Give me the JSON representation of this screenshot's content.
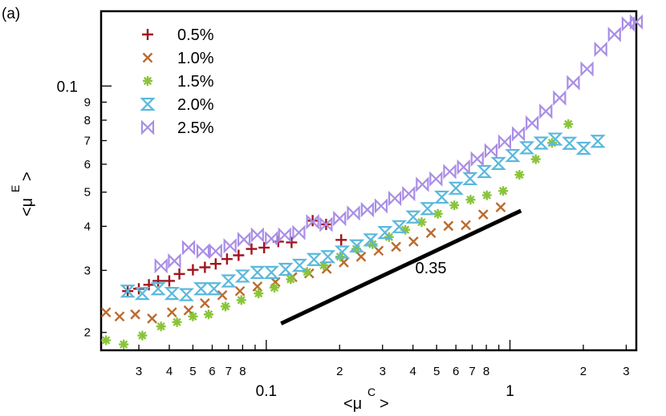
{
  "panel_label": "(a)",
  "chart_data": {
    "type": "scatter",
    "xscale": "log",
    "yscale": "log",
    "xlim": [
      0.021,
      3.3
    ],
    "ylim": [
      0.0178,
      0.163
    ],
    "xlabel": {
      "main": "<μ",
      "sup": "C",
      "close": ">"
    },
    "ylabel": {
      "main": "<μ",
      "sup": "E",
      "close": ">"
    },
    "x_major_ticks": [
      {
        "value": 0.1,
        "label": "0.1"
      },
      {
        "value": 1,
        "label": "1"
      }
    ],
    "x_minor_ticks": [
      {
        "value": 0.03,
        "label": "3"
      },
      {
        "value": 0.04,
        "label": "4"
      },
      {
        "value": 0.05,
        "label": "5"
      },
      {
        "value": 0.06,
        "label": "6"
      },
      {
        "value": 0.07,
        "label": "7"
      },
      {
        "value": 0.08,
        "label": "8"
      },
      {
        "value": 0.09,
        "label": ""
      },
      {
        "value": 0.2,
        "label": "2"
      },
      {
        "value": 0.3,
        "label": "3"
      },
      {
        "value": 0.4,
        "label": "4"
      },
      {
        "value": 0.5,
        "label": "5"
      },
      {
        "value": 0.6,
        "label": "6"
      },
      {
        "value": 0.7,
        "label": "7"
      },
      {
        "value": 0.8,
        "label": "8"
      },
      {
        "value": 0.9,
        "label": ""
      },
      {
        "value": 2,
        "label": "2"
      },
      {
        "value": 3,
        "label": "3"
      }
    ],
    "y_major_ticks": [
      {
        "value": 0.1,
        "label": "0.1"
      }
    ],
    "y_minor_ticks": [
      {
        "value": 0.02,
        "label": "2"
      },
      {
        "value": 0.03,
        "label": "3"
      },
      {
        "value": 0.04,
        "label": "4"
      },
      {
        "value": 0.05,
        "label": "5"
      },
      {
        "value": 0.06,
        "label": "6"
      },
      {
        "value": 0.07,
        "label": "7"
      },
      {
        "value": 0.08,
        "label": "8"
      },
      {
        "value": 0.09,
        "label": "9"
      }
    ],
    "legend_position": "top-left",
    "series": [
      {
        "name": "0.5%",
        "marker": "plus",
        "color": "#a0141e",
        "points": [
          [
            0.027,
            0.0262
          ],
          [
            0.03,
            0.0266
          ],
          [
            0.033,
            0.0273
          ],
          [
            0.036,
            0.028
          ],
          [
            0.04,
            0.028
          ],
          [
            0.044,
            0.0293
          ],
          [
            0.05,
            0.0301
          ],
          [
            0.056,
            0.0306
          ],
          [
            0.062,
            0.0313
          ],
          [
            0.069,
            0.0323
          ],
          [
            0.077,
            0.0331
          ],
          [
            0.087,
            0.0345
          ],
          [
            0.098,
            0.0348
          ],
          [
            0.112,
            0.0362
          ],
          [
            0.127,
            0.036
          ],
          [
            0.155,
            0.0415
          ],
          [
            0.176,
            0.0405
          ],
          [
            0.203,
            0.0366
          ]
        ]
      },
      {
        "name": "1.0%",
        "marker": "x",
        "color": "#bb6a2e",
        "points": [
          [
            0.022,
            0.0228
          ],
          [
            0.025,
            0.0222
          ],
          [
            0.029,
            0.0225
          ],
          [
            0.034,
            0.0219
          ],
          [
            0.041,
            0.0228
          ],
          [
            0.048,
            0.0231
          ],
          [
            0.056,
            0.0242
          ],
          [
            0.066,
            0.0255
          ],
          [
            0.078,
            0.0262
          ],
          [
            0.092,
            0.027
          ],
          [
            0.109,
            0.0278
          ],
          [
            0.128,
            0.0287
          ],
          [
            0.15,
            0.0294
          ],
          [
            0.177,
            0.0303
          ],
          [
            0.208,
            0.0316
          ],
          [
            0.245,
            0.0328
          ],
          [
            0.289,
            0.0341
          ],
          [
            0.341,
            0.035
          ],
          [
            0.402,
            0.0362
          ],
          [
            0.474,
            0.0383
          ],
          [
            0.559,
            0.0401
          ],
          [
            0.659,
            0.0403
          ],
          [
            0.777,
            0.0432
          ],
          [
            0.916,
            0.0453
          ]
        ]
      },
      {
        "name": "1.5%",
        "marker": "asterisk",
        "color": "#8ac43a",
        "points": [
          [
            0.022,
            0.019
          ],
          [
            0.026,
            0.0185
          ],
          [
            0.031,
            0.0196
          ],
          [
            0.037,
            0.0208
          ],
          [
            0.043,
            0.0214
          ],
          [
            0.05,
            0.0222
          ],
          [
            0.058,
            0.0225
          ],
          [
            0.068,
            0.0237
          ],
          [
            0.079,
            0.0247
          ],
          [
            0.093,
            0.0258
          ],
          [
            0.108,
            0.0268
          ],
          [
            0.126,
            0.0283
          ],
          [
            0.147,
            0.0297
          ],
          [
            0.172,
            0.031
          ],
          [
            0.201,
            0.0328
          ],
          [
            0.234,
            0.0345
          ],
          [
            0.273,
            0.0356
          ],
          [
            0.319,
            0.0373
          ],
          [
            0.372,
            0.0391
          ],
          [
            0.434,
            0.0411
          ],
          [
            0.506,
            0.0434
          ],
          [
            0.591,
            0.0459
          ],
          [
            0.689,
            0.0476
          ],
          [
            0.804,
            0.049
          ],
          [
            0.938,
            0.0504
          ],
          [
            1.094,
            0.056
          ],
          [
            1.276,
            0.062
          ],
          [
            1.488,
            0.069
          ],
          [
            1.736,
            0.078
          ]
        ]
      },
      {
        "name": "2.0%",
        "marker": "hourglass",
        "color": "#5ab8dc",
        "points": [
          [
            0.027,
            0.0262
          ],
          [
            0.031,
            0.0258
          ],
          [
            0.036,
            0.0266
          ],
          [
            0.041,
            0.0258
          ],
          [
            0.047,
            0.0256
          ],
          [
            0.054,
            0.0266
          ],
          [
            0.061,
            0.0266
          ],
          [
            0.07,
            0.028
          ],
          [
            0.08,
            0.0289
          ],
          [
            0.092,
            0.0296
          ],
          [
            0.105,
            0.0296
          ],
          [
            0.12,
            0.0302
          ],
          [
            0.137,
            0.031
          ],
          [
            0.157,
            0.0322
          ],
          [
            0.179,
            0.0328
          ],
          [
            0.205,
            0.0338
          ],
          [
            0.235,
            0.0352
          ],
          [
            0.268,
            0.0366
          ],
          [
            0.307,
            0.0384
          ],
          [
            0.351,
            0.0399
          ],
          [
            0.401,
            0.0425
          ],
          [
            0.459,
            0.0449
          ],
          [
            0.525,
            0.0484
          ],
          [
            0.6,
            0.0513
          ],
          [
            0.686,
            0.0546
          ],
          [
            0.785,
            0.0572
          ],
          [
            0.897,
            0.0603
          ],
          [
            1.026,
            0.0635
          ],
          [
            1.173,
            0.0668
          ],
          [
            1.342,
            0.0689
          ],
          [
            1.534,
            0.0707
          ],
          [
            1.755,
            0.0688
          ],
          [
            2.006,
            0.0666
          ],
          [
            2.294,
            0.0697
          ]
        ]
      },
      {
        "name": "2.5%",
        "marker": "bowtie",
        "color": "#a98ee6",
        "points": [
          [
            0.037,
            0.0309
          ],
          [
            0.042,
            0.0319
          ],
          [
            0.048,
            0.0348
          ],
          [
            0.055,
            0.034
          ],
          [
            0.062,
            0.034
          ],
          [
            0.071,
            0.0352
          ],
          [
            0.081,
            0.0367
          ],
          [
            0.092,
            0.0378
          ],
          [
            0.105,
            0.0369
          ],
          [
            0.119,
            0.0378
          ],
          [
            0.136,
            0.0384
          ],
          [
            0.155,
            0.0412
          ],
          [
            0.176,
            0.0405
          ],
          [
            0.2,
            0.0421
          ],
          [
            0.228,
            0.0436
          ],
          [
            0.26,
            0.0446
          ],
          [
            0.296,
            0.0457
          ],
          [
            0.337,
            0.048
          ],
          [
            0.384,
            0.0495
          ],
          [
            0.437,
            0.0526
          ],
          [
            0.497,
            0.0545
          ],
          [
            0.566,
            0.0572
          ],
          [
            0.645,
            0.0589
          ],
          [
            0.734,
            0.0621
          ],
          [
            0.836,
            0.0655
          ],
          [
            0.951,
            0.0694
          ],
          [
            1.083,
            0.0732
          ],
          [
            1.233,
            0.0785
          ],
          [
            1.404,
            0.0848
          ],
          [
            1.598,
            0.0925
          ],
          [
            1.819,
            0.1022
          ],
          [
            2.071,
            0.1118
          ],
          [
            2.358,
            0.1272
          ],
          [
            2.684,
            0.1401
          ],
          [
            3.056,
            0.15
          ],
          [
            3.3,
            0.152
          ]
        ]
      }
    ],
    "reference_line": {
      "x": [
        0.115,
        1.11
      ],
      "y": [
        0.0212,
        0.0443
      ],
      "label": "0.35"
    }
  }
}
